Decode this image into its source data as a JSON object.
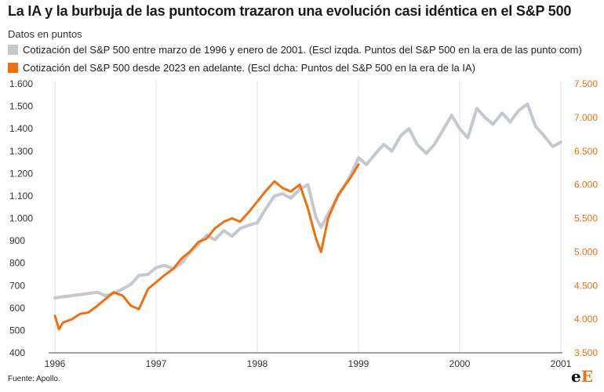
{
  "chart_data": {
    "type": "line",
    "title": "La IA y la burbuja de las puntocom trazaron una evolución casi idéntica en el S&P 500",
    "subtitle": "Datos en puntos",
    "series": [
      {
        "name": "Cotización del S&P 500 entre marzo de 1996 y enero de 2001. (Escl izqda. Puntos del S&P 500 en la era de las punto com)",
        "axis": "left",
        "color": "#c4c8cf",
        "points": [
          [
            1996.0,
            645
          ],
          [
            1996.08,
            650
          ],
          [
            1996.17,
            655
          ],
          [
            1996.25,
            660
          ],
          [
            1996.33,
            665
          ],
          [
            1996.42,
            670
          ],
          [
            1996.5,
            655
          ],
          [
            1996.58,
            665
          ],
          [
            1996.67,
            685
          ],
          [
            1996.75,
            705
          ],
          [
            1996.83,
            745
          ],
          [
            1996.92,
            750
          ],
          [
            1997.0,
            780
          ],
          [
            1997.08,
            790
          ],
          [
            1997.17,
            775
          ],
          [
            1997.25,
            800
          ],
          [
            1997.33,
            845
          ],
          [
            1997.42,
            885
          ],
          [
            1997.5,
            925
          ],
          [
            1997.58,
            905
          ],
          [
            1997.67,
            945
          ],
          [
            1997.75,
            920
          ],
          [
            1997.83,
            955
          ],
          [
            1997.92,
            970
          ],
          [
            1998.0,
            980
          ],
          [
            1998.08,
            1040
          ],
          [
            1998.17,
            1100
          ],
          [
            1998.25,
            1110
          ],
          [
            1998.33,
            1090
          ],
          [
            1998.42,
            1130
          ],
          [
            1998.5,
            1150
          ],
          [
            1998.58,
            1005
          ],
          [
            1998.63,
            960
          ],
          [
            1998.7,
            1020
          ],
          [
            1998.8,
            1100
          ],
          [
            1998.92,
            1190
          ],
          [
            1999.0,
            1270
          ],
          [
            1999.08,
            1240
          ],
          [
            1999.17,
            1290
          ],
          [
            1999.25,
            1330
          ],
          [
            1999.33,
            1300
          ],
          [
            1999.42,
            1370
          ],
          [
            1999.5,
            1400
          ],
          [
            1999.58,
            1330
          ],
          [
            1999.67,
            1290
          ],
          [
            1999.75,
            1330
          ],
          [
            1999.83,
            1390
          ],
          [
            1999.92,
            1460
          ],
          [
            2000.0,
            1400
          ],
          [
            2000.08,
            1360
          ],
          [
            2000.17,
            1490
          ],
          [
            2000.25,
            1450
          ],
          [
            2000.33,
            1420
          ],
          [
            2000.42,
            1470
          ],
          [
            2000.5,
            1430
          ],
          [
            2000.58,
            1480
          ],
          [
            2000.67,
            1510
          ],
          [
            2000.75,
            1410
          ],
          [
            2000.83,
            1370
          ],
          [
            2000.92,
            1320
          ],
          [
            2001.0,
            1340
          ]
        ]
      },
      {
        "name": "Cotización del S&P 500 desde 2023 en adelante. (Escl dcha: Puntos del S&P 500 en la era de la IA)",
        "axis": "right",
        "color": "#f07010",
        "points": [
          [
            1996.0,
            4050
          ],
          [
            1996.04,
            3850
          ],
          [
            1996.08,
            3950
          ],
          [
            1996.17,
            4000
          ],
          [
            1996.25,
            4080
          ],
          [
            1996.33,
            4100
          ],
          [
            1996.42,
            4200
          ],
          [
            1996.5,
            4300
          ],
          [
            1996.58,
            4400
          ],
          [
            1996.67,
            4350
          ],
          [
            1996.75,
            4200
          ],
          [
            1996.83,
            4150
          ],
          [
            1996.92,
            4450
          ],
          [
            1997.0,
            4550
          ],
          [
            1997.08,
            4650
          ],
          [
            1997.17,
            4750
          ],
          [
            1997.25,
            4900
          ],
          [
            1997.33,
            5000
          ],
          [
            1997.42,
            5150
          ],
          [
            1997.5,
            5200
          ],
          [
            1997.58,
            5350
          ],
          [
            1997.67,
            5450
          ],
          [
            1997.75,
            5500
          ],
          [
            1997.83,
            5450
          ],
          [
            1997.92,
            5600
          ],
          [
            1998.0,
            5750
          ],
          [
            1998.08,
            5900
          ],
          [
            1998.17,
            6050
          ],
          [
            1998.25,
            5950
          ],
          [
            1998.33,
            5900
          ],
          [
            1998.42,
            6000
          ],
          [
            1998.5,
            5650
          ],
          [
            1998.58,
            5200
          ],
          [
            1998.63,
            5000
          ],
          [
            1998.7,
            5500
          ],
          [
            1998.8,
            5850
          ],
          [
            1998.92,
            6100
          ],
          [
            1999.0,
            6300
          ]
        ]
      }
    ],
    "x_ticks": [
      "1996",
      "1997",
      "1998",
      "1999",
      "2000",
      "2001"
    ],
    "left_ticks": [
      "400",
      "500",
      "600",
      "700",
      "800",
      "900",
      "1.000",
      "1.100",
      "1.200",
      "1.300",
      "1.400",
      "1.500",
      "1.600"
    ],
    "right_ticks": [
      "3.500",
      "4.000",
      "4.500",
      "5.000",
      "5.500",
      "6.000",
      "6.500",
      "7.000",
      "7.500"
    ],
    "xlim": [
      1996,
      2001
    ],
    "ylim_left": [
      400,
      1600
    ],
    "ylim_right": [
      3500,
      7500
    ],
    "grid": "vertical"
  },
  "footer": {
    "source": "Fuente: Apollo.",
    "logo_e1": "e",
    "logo_e2": "E"
  }
}
